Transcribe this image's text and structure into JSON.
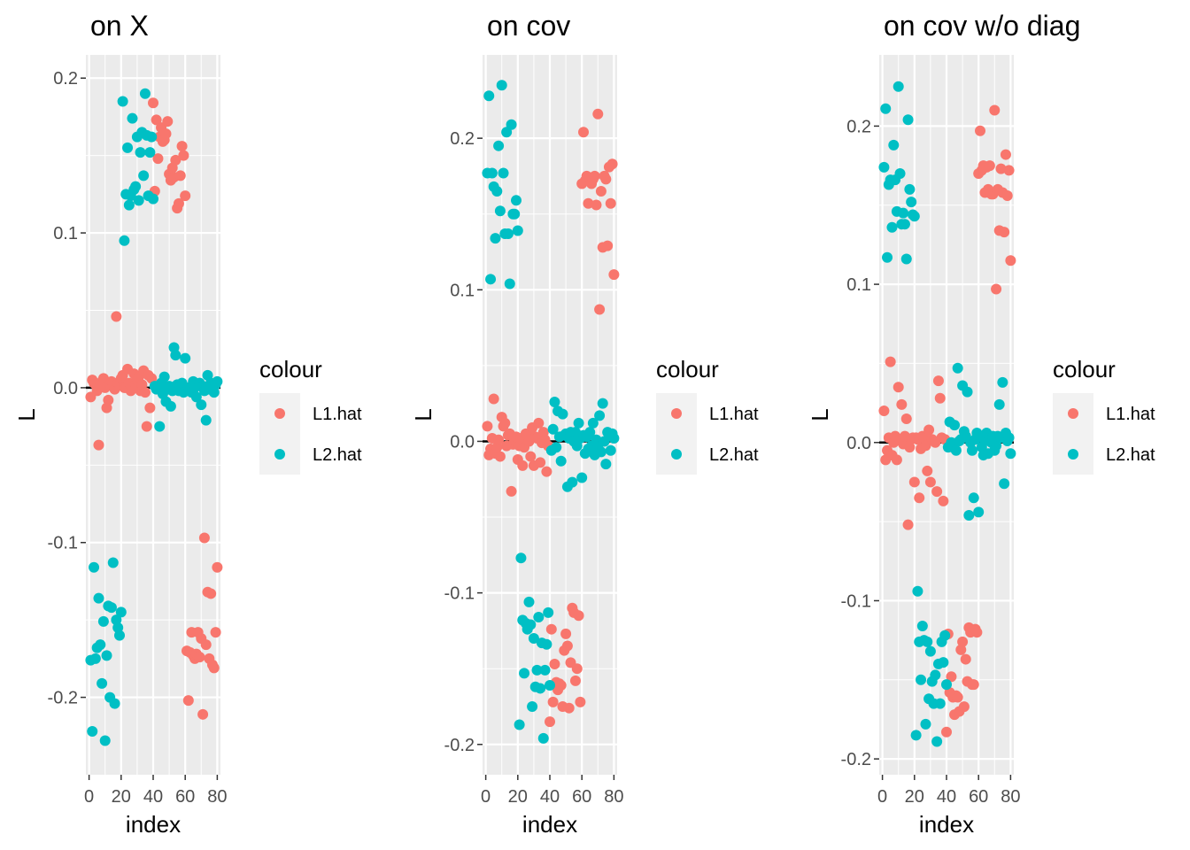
{
  "legend": {
    "title": "colour",
    "items": [
      {
        "name": "L1.hat",
        "color": "#F8766D"
      },
      {
        "name": "L2.hat",
        "color": "#00BFC4"
      }
    ]
  },
  "chart_data": [
    {
      "type": "scatter",
      "title": "on X",
      "xlabel": "index",
      "ylabel": "L",
      "xlim": [
        -2,
        82
      ],
      "ylim": [
        -0.25,
        0.215
      ],
      "xticks": [
        0,
        20,
        40,
        60,
        80
      ],
      "yticks": [
        -0.2,
        -0.1,
        0.0,
        0.1,
        0.2
      ],
      "ytick_labels": [
        "-0.2",
        "-0.1",
        "0.0",
        "0.1",
        "0.2"
      ],
      "hline": 0,
      "series": [
        {
          "name": "L1.hat",
          "x": [
            1,
            2,
            3,
            4,
            5,
            6,
            7,
            8,
            9,
            10,
            11,
            12,
            13,
            14,
            15,
            16,
            17,
            18,
            19,
            20,
            21,
            22,
            23,
            24,
            25,
            26,
            27,
            28,
            29,
            30,
            31,
            32,
            33,
            34,
            35,
            36,
            37,
            38,
            39,
            40,
            41,
            42,
            43,
            44,
            45,
            46,
            47,
            48,
            49,
            50,
            51,
            52,
            53,
            54,
            55,
            56,
            57,
            58,
            59,
            60,
            61,
            62,
            63,
            64,
            65,
            66,
            67,
            68,
            69,
            70,
            71,
            72,
            73,
            74,
            75,
            76,
            77,
            78,
            79,
            80
          ],
          "y": [
            -0.006,
            0.005,
            0.003,
            0.002,
            -0.002,
            -0.037,
            0.001,
            0.004,
            0.006,
            0.0,
            -0.013,
            -0.008,
            0.002,
            0.004,
            0.003,
            -0.001,
            0.046,
            0.003,
            0.002,
            0.006,
            0.008,
            0.0,
            0.0,
            0.012,
            0.003,
            -0.002,
            0.0,
            0.009,
            0.002,
            0.005,
            0.007,
            -0.002,
            0.002,
            0.011,
            -0.003,
            -0.025,
            0.008,
            -0.013,
            0.006,
            0.184,
            0.127,
            0.173,
            0.148,
            0.162,
            0.168,
            0.159,
            0.16,
            0.164,
            0.172,
            0.138,
            0.134,
            0.142,
            0.136,
            0.147,
            0.116,
            0.119,
            0.137,
            0.156,
            0.15,
            0.124,
            -0.17,
            -0.202,
            -0.171,
            -0.158,
            -0.173,
            -0.175,
            -0.172,
            -0.158,
            -0.174,
            -0.162,
            -0.211,
            -0.097,
            -0.166,
            -0.132,
            -0.175,
            -0.133,
            -0.179,
            -0.181,
            -0.158,
            -0.116
          ]
        },
        {
          "name": "L2.hat",
          "x": [
            1,
            2,
            3,
            4,
            5,
            6,
            7,
            8,
            9,
            10,
            11,
            12,
            13,
            14,
            15,
            16,
            17,
            18,
            19,
            20,
            21,
            22,
            23,
            24,
            25,
            26,
            27,
            28,
            29,
            30,
            31,
            32,
            33,
            34,
            35,
            36,
            37,
            38,
            39,
            40,
            41,
            42,
            43,
            44,
            45,
            46,
            47,
            48,
            49,
            50,
            51,
            52,
            53,
            54,
            55,
            56,
            57,
            58,
            59,
            60,
            61,
            62,
            63,
            64,
            65,
            66,
            67,
            68,
            69,
            70,
            71,
            72,
            73,
            74,
            75,
            76,
            77,
            78,
            79,
            80
          ],
          "y": [
            -0.176,
            -0.222,
            -0.116,
            -0.175,
            -0.168,
            -0.136,
            -0.166,
            -0.191,
            -0.151,
            -0.228,
            -0.173,
            -0.141,
            -0.2,
            -0.142,
            -0.113,
            -0.204,
            -0.15,
            -0.155,
            -0.16,
            -0.145,
            0.185,
            0.095,
            0.125,
            0.155,
            0.118,
            0.124,
            0.174,
            0.128,
            0.13,
            0.162,
            0.121,
            0.152,
            0.165,
            0.137,
            0.19,
            0.163,
            0.124,
            0.152,
            0.162,
            0.122,
            0.001,
            -0.001,
            0.0,
            -0.025,
            0.003,
            -0.004,
            0.007,
            -0.009,
            -0.001,
            0.001,
            -0.012,
            -0.002,
            0.026,
            0.021,
            0.002,
            -0.002,
            0.001,
            0.003,
            -0.003,
            0.019,
            -0.002,
            0.0,
            -0.001,
            -0.003,
            0.004,
            0.0,
            -0.006,
            0.002,
            0.003,
            -0.011,
            0.001,
            -0.002,
            -0.021,
            0.008,
            -0.001,
            0.003,
            0.001,
            -0.003,
            0.002,
            0.004
          ]
        }
      ]
    },
    {
      "type": "scatter",
      "title": "on cov",
      "xlabel": "index",
      "ylabel": "L",
      "xlim": [
        -2,
        82
      ],
      "ylim": [
        -0.22,
        0.255
      ],
      "xticks": [
        0,
        20,
        40,
        60,
        80
      ],
      "yticks": [
        -0.2,
        -0.1,
        0.0,
        0.1,
        0.2
      ],
      "ytick_labels": [
        "-0.2",
        "-0.1",
        "0.0",
        "0.1",
        "0.2"
      ],
      "hline": 0,
      "series": [
        {
          "name": "L1.hat",
          "x": [
            1,
            2,
            3,
            4,
            5,
            6,
            7,
            8,
            9,
            10,
            11,
            12,
            13,
            14,
            15,
            16,
            17,
            18,
            19,
            20,
            21,
            22,
            23,
            24,
            25,
            26,
            27,
            28,
            29,
            30,
            31,
            32,
            33,
            34,
            35,
            36,
            37,
            38,
            39,
            40,
            41,
            42,
            43,
            44,
            45,
            46,
            47,
            48,
            49,
            50,
            51,
            52,
            53,
            54,
            55,
            56,
            57,
            58,
            59,
            60,
            61,
            62,
            63,
            64,
            65,
            66,
            67,
            68,
            69,
            70,
            71,
            72,
            73,
            74,
            75,
            76,
            77,
            78,
            79,
            80
          ],
          "y": [
            0.01,
            -0.009,
            -0.005,
            0.002,
            0.028,
            -0.008,
            -0.004,
            0.001,
            -0.01,
            0.016,
            0.01,
            0.012,
            -0.003,
            0.004,
            0.005,
            -0.033,
            -0.002,
            0.001,
            0.003,
            -0.012,
            -0.003,
            0.002,
            -0.016,
            -0.004,
            0.005,
            0.004,
            0.0,
            -0.01,
            0.009,
            -0.016,
            0.003,
            0.002,
            0.012,
            -0.014,
            -0.001,
            0.006,
            0.001,
            -0.02,
            -0.003,
            -0.185,
            -0.124,
            -0.172,
            -0.147,
            -0.159,
            -0.164,
            -0.16,
            -0.161,
            -0.175,
            -0.138,
            -0.127,
            -0.135,
            -0.176,
            -0.146,
            -0.11,
            -0.113,
            -0.158,
            -0.15,
            -0.115,
            -0.172,
            0.17,
            0.204,
            0.172,
            0.175,
            0.157,
            0.174,
            0.17,
            0.173,
            0.175,
            0.156,
            0.216,
            0.087,
            0.165,
            0.128,
            0.175,
            0.173,
            0.129,
            0.181,
            0.157,
            0.183,
            0.11
          ]
        },
        {
          "name": "L2.hat",
          "x": [
            1,
            2,
            3,
            4,
            5,
            6,
            7,
            8,
            9,
            10,
            11,
            12,
            13,
            14,
            15,
            16,
            17,
            18,
            19,
            20,
            21,
            22,
            23,
            24,
            25,
            26,
            27,
            28,
            29,
            30,
            31,
            32,
            33,
            34,
            35,
            36,
            37,
            38,
            39,
            40,
            41,
            42,
            43,
            44,
            45,
            46,
            47,
            48,
            49,
            50,
            51,
            52,
            53,
            54,
            55,
            56,
            57,
            58,
            59,
            60,
            61,
            62,
            63,
            64,
            65,
            66,
            67,
            68,
            69,
            70,
            71,
            72,
            73,
            74,
            75,
            76,
            77,
            78,
            79,
            80
          ],
          "y": [
            0.177,
            0.228,
            0.107,
            0.177,
            0.168,
            0.134,
            0.165,
            0.195,
            0.152,
            0.235,
            0.177,
            0.137,
            0.204,
            0.137,
            0.104,
            0.209,
            0.15,
            0.15,
            0.159,
            0.139,
            -0.187,
            -0.077,
            -0.118,
            -0.153,
            -0.12,
            -0.124,
            -0.106,
            -0.121,
            -0.175,
            -0.13,
            -0.162,
            -0.151,
            -0.116,
            -0.163,
            -0.133,
            -0.196,
            -0.151,
            -0.134,
            -0.113,
            -0.161,
            -0.006,
            0.008,
            0.026,
            -0.004,
            0.02,
            0.003,
            -0.013,
            0.018,
            0.004,
            0.005,
            -0.03,
            0.002,
            0.006,
            -0.027,
            0.0,
            0.006,
            -0.003,
            0.012,
            0.002,
            -0.024,
            0.004,
            -0.008,
            0.003,
            -0.005,
            0.006,
            -0.003,
            0.012,
            -0.009,
            0.001,
            -0.004,
            0.017,
            -0.007,
            0.025,
            0.0,
            -0.015,
            0.006,
            0.004,
            -0.006,
            0.005,
            0.002
          ]
        }
      ]
    },
    {
      "type": "scatter",
      "title": "on cov w/o diag",
      "xlabel": "index",
      "ylabel": "L",
      "xlim": [
        -2,
        82
      ],
      "ylim": [
        -0.21,
        0.245
      ],
      "xticks": [
        0,
        20,
        40,
        60,
        80
      ],
      "yticks": [
        -0.2,
        -0.1,
        0.0,
        0.1,
        0.2
      ],
      "ytick_labels": [
        "-0.2",
        "-0.1",
        "0.0",
        "0.1",
        "0.2"
      ],
      "hline": 0,
      "series": [
        {
          "name": "L1.hat",
          "x": [
            1,
            2,
            3,
            4,
            5,
            6,
            7,
            8,
            9,
            10,
            11,
            12,
            13,
            14,
            15,
            16,
            17,
            18,
            19,
            20,
            21,
            22,
            23,
            24,
            25,
            26,
            27,
            28,
            29,
            30,
            31,
            32,
            33,
            34,
            35,
            36,
            37,
            38,
            39,
            40,
            41,
            42,
            43,
            44,
            45,
            46,
            47,
            48,
            49,
            50,
            51,
            52,
            53,
            54,
            55,
            56,
            57,
            58,
            59,
            60,
            61,
            62,
            63,
            64,
            65,
            66,
            67,
            68,
            69,
            70,
            71,
            72,
            73,
            74,
            75,
            76,
            77,
            78,
            79,
            80
          ],
          "y": [
            0.02,
            -0.011,
            -0.005,
            0.003,
            0.051,
            -0.008,
            0.0,
            0.004,
            -0.011,
            0.035,
            0.002,
            0.024,
            -0.001,
            0.004,
            0.015,
            -0.052,
            -0.003,
            0.002,
            0.003,
            -0.025,
            0.003,
            0.002,
            -0.035,
            -0.004,
            0.004,
            0.003,
            -0.002,
            -0.018,
            0.008,
            -0.025,
            0.002,
            0.001,
            0.0,
            -0.031,
            0.039,
            0.028,
            0.003,
            -0.037,
            0.002,
            -0.183,
            -0.121,
            -0.158,
            -0.148,
            -0.161,
            -0.172,
            -0.16,
            -0.161,
            -0.17,
            -0.131,
            -0.126,
            -0.167,
            -0.137,
            -0.151,
            -0.117,
            -0.12,
            -0.153,
            -0.153,
            -0.118,
            -0.12,
            0.17,
            0.197,
            0.172,
            0.175,
            0.158,
            0.174,
            0.16,
            0.175,
            0.157,
            0.157,
            0.21,
            0.097,
            0.16,
            0.134,
            0.173,
            0.158,
            0.133,
            0.182,
            0.156,
            0.172,
            0.115
          ]
        },
        {
          "name": "L2.hat",
          "x": [
            1,
            2,
            3,
            4,
            5,
            6,
            7,
            8,
            9,
            10,
            11,
            12,
            13,
            14,
            15,
            16,
            17,
            18,
            19,
            20,
            21,
            22,
            23,
            24,
            25,
            26,
            27,
            28,
            29,
            30,
            31,
            32,
            33,
            34,
            35,
            36,
            37,
            38,
            39,
            40,
            41,
            42,
            43,
            44,
            45,
            46,
            47,
            48,
            49,
            50,
            51,
            52,
            53,
            54,
            55,
            56,
            57,
            58,
            59,
            60,
            61,
            62,
            63,
            64,
            65,
            66,
            67,
            68,
            69,
            70,
            71,
            72,
            73,
            74,
            75,
            76,
            77,
            78,
            79,
            80
          ],
          "y": [
            0.174,
            0.211,
            0.117,
            0.163,
            0.166,
            0.136,
            0.188,
            0.166,
            0.146,
            0.225,
            0.17,
            0.138,
            0.145,
            0.138,
            0.116,
            0.204,
            0.16,
            0.152,
            0.144,
            0.143,
            -0.185,
            -0.094,
            -0.126,
            -0.15,
            -0.116,
            -0.125,
            -0.178,
            -0.126,
            -0.162,
            -0.132,
            -0.151,
            -0.165,
            -0.147,
            -0.189,
            -0.14,
            -0.165,
            -0.126,
            -0.139,
            -0.122,
            -0.153,
            -0.003,
            0.013,
            0.0,
            -0.003,
            0.011,
            -0.005,
            0.047,
            0.001,
            0.002,
            0.036,
            0.007,
            0.004,
            0.032,
            -0.046,
            0.0,
            -0.005,
            -0.035,
            0.002,
            0.006,
            -0.044,
            0.004,
            -0.003,
            -0.008,
            0.001,
            0.006,
            -0.007,
            0.003,
            0.0,
            0.004,
            -0.005,
            -0.002,
            0.004,
            0.024,
            0.003,
            0.038,
            -0.026,
            0.006,
            0.001,
            0.003,
            -0.007
          ]
        }
      ]
    }
  ]
}
